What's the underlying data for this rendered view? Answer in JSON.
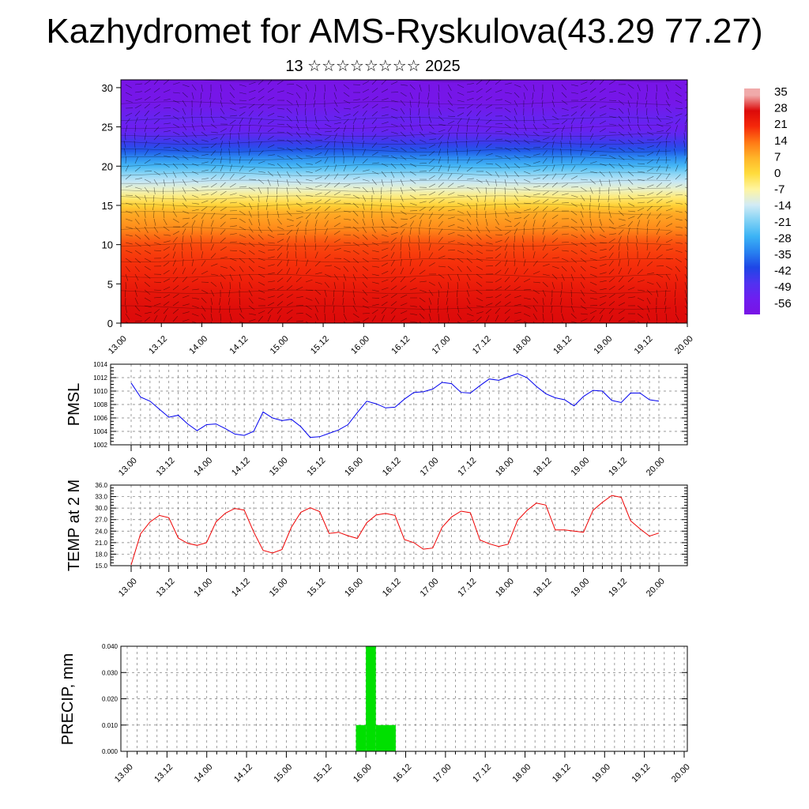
{
  "title": "Kazhydromet for AMS-Ryskulova(43.29 77.27)",
  "subtitle": "13 ☆☆☆☆☆☆☆☆ 2025",
  "x_tick_labels": [
    "13.00",
    "13.12",
    "14.00",
    "14.12",
    "15.00",
    "15.12",
    "16.00",
    "16.12",
    "17.00",
    "17.12",
    "18.00",
    "18.12",
    "19.00",
    "19.12",
    "20.00"
  ],
  "colors": {
    "pmsl_line": "#0000ee",
    "temp_line": "#ee0000",
    "precip_bar": "#00e000",
    "grid": "#777777"
  },
  "chart_data": [
    {
      "type": "heatmap",
      "title": "",
      "xlabel": "",
      "ylabel": "",
      "x": [
        "13.00",
        "13.12",
        "14.00",
        "14.12",
        "15.00",
        "15.12",
        "16.00",
        "16.12",
        "17.00",
        "17.12",
        "18.00",
        "18.12",
        "19.00",
        "19.12",
        "20.00"
      ],
      "y_ticks": [
        0,
        5,
        10,
        15,
        20,
        25,
        30
      ],
      "ylim": [
        0,
        31
      ],
      "overlay": "wind vectors",
      "temperature_profile": {
        "levels": [
          0,
          2,
          4,
          6,
          8,
          10,
          12,
          14,
          15,
          16,
          17,
          18,
          19,
          20,
          21,
          22,
          23,
          24,
          25,
          26,
          28,
          31
        ],
        "values": [
          28,
          27,
          25,
          22,
          20,
          18,
          12,
          8,
          2,
          -4,
          -10,
          -15,
          -20,
          -27,
          -33,
          -40,
          -46,
          -52,
          -56,
          -54,
          -60,
          -62
        ]
      },
      "colorbar": {
        "labels": [
          "35",
          "28",
          "21",
          "14",
          "7",
          "0",
          "-7",
          "-14",
          "-21",
          "-28",
          "-35",
          "-42",
          "-49",
          "-56"
        ],
        "values": [
          35,
          28,
          21,
          14,
          7,
          0,
          -7,
          -14,
          -21,
          -28,
          -35,
          -42,
          -49,
          -56
        ]
      }
    },
    {
      "type": "line",
      "ylabel": "PMSL",
      "ylim": [
        1002,
        1014
      ],
      "y_ticks": [
        "1002",
        "1004",
        "1006",
        "1008",
        "1010",
        "1012",
        "1014"
      ],
      "x": [
        0,
        3,
        6,
        9,
        12,
        15,
        18,
        21,
        24,
        27,
        30,
        33,
        36,
        39,
        42,
        45,
        48,
        51,
        54,
        57,
        60,
        63,
        66,
        69,
        72,
        75,
        78,
        81,
        84,
        87,
        90,
        93,
        96,
        99,
        102,
        105,
        108,
        111,
        114,
        117,
        120,
        123,
        126,
        129,
        132,
        135,
        138,
        141,
        144,
        147,
        150,
        153,
        156,
        159,
        162,
        165,
        168
      ],
      "series": [
        {
          "values": [
            1011.2,
            1009.1,
            1008.5,
            1007.3,
            1006.1,
            1006.4,
            1005.1,
            1004.1,
            1005.0,
            1005.1,
            1004.4,
            1003.6,
            1003.4,
            1004.0,
            1006.9,
            1006.0,
            1005.6,
            1005.8,
            1004.7,
            1003.1,
            1003.2,
            1003.7,
            1004.2,
            1005.0,
            1006.8,
            1008.5,
            1008.1,
            1007.5,
            1007.6,
            1008.8,
            1009.8,
            1009.9,
            1010.3,
            1011.3,
            1011.1,
            1009.8,
            1009.7,
            1010.8,
            1011.8,
            1011.6,
            1012.1,
            1012.6,
            1012.0,
            1010.7,
            1009.6,
            1009.0,
            1008.7,
            1007.8,
            1009.2,
            1010.1,
            1010.0,
            1008.6,
            1008.3,
            1009.7,
            1009.7,
            1008.7,
            1008.5
          ]
        }
      ]
    },
    {
      "type": "line",
      "ylabel": "TEMP at 2 M",
      "ylim": [
        15.0,
        36.0
      ],
      "y_ticks": [
        "15.0",
        "18.0",
        "21.0",
        "24.0",
        "27.0",
        "30.0",
        "33.0",
        "36.0"
      ],
      "x": [
        0,
        3,
        6,
        9,
        12,
        15,
        18,
        21,
        24,
        27,
        30,
        33,
        36,
        39,
        42,
        45,
        48,
        51,
        54,
        57,
        60,
        63,
        66,
        69,
        72,
        75,
        78,
        81,
        84,
        87,
        90,
        93,
        96,
        99,
        102,
        105,
        108,
        111,
        114,
        117,
        120,
        123,
        126,
        129,
        132,
        135,
        138,
        141,
        144,
        147,
        150,
        153,
        156,
        159,
        162,
        165,
        168
      ],
      "series": [
        {
          "values": [
            15.2,
            23.3,
            26.4,
            28.1,
            27.5,
            22.2,
            20.8,
            20.3,
            21.0,
            26.4,
            28.7,
            29.9,
            29.5,
            23.8,
            19.0,
            18.3,
            19.2,
            25.0,
            28.9,
            30.1,
            29.1,
            23.4,
            23.7,
            22.8,
            22.1,
            26.2,
            28.2,
            28.6,
            28.1,
            21.8,
            21.0,
            19.3,
            19.6,
            25.0,
            27.7,
            29.2,
            28.8,
            21.7,
            20.7,
            20.0,
            20.6,
            26.8,
            29.4,
            31.3,
            30.8,
            24.3,
            24.3,
            24.0,
            23.7,
            29.4,
            31.5,
            33.3,
            32.8,
            26.7,
            24.6,
            22.7,
            23.5
          ]
        }
      ]
    },
    {
      "type": "bar",
      "ylabel": "PRECIP, mm",
      "ylim": [
        0.0,
        0.04
      ],
      "y_ticks": [
        "0.000",
        "0.010",
        "0.020",
        "0.030",
        "0.040"
      ],
      "bars": [
        {
          "from": 69,
          "to": 72,
          "value": 0.01
        },
        {
          "from": 72,
          "to": 75,
          "value": 0.04
        },
        {
          "from": 75,
          "to": 81,
          "value": 0.01
        }
      ]
    }
  ]
}
